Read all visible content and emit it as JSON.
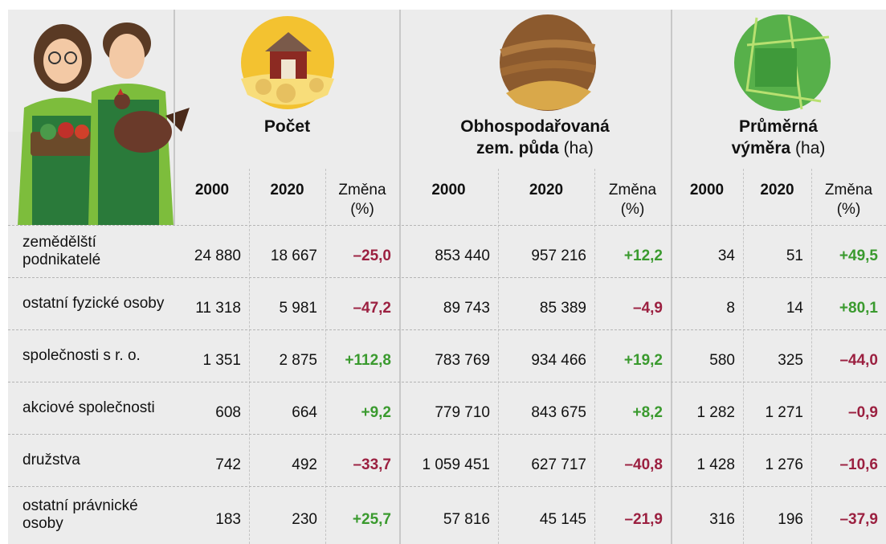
{
  "table": {
    "groups": [
      {
        "title": "Počet",
        "columns": [
          "2000",
          "2020",
          "Změna (%)"
        ]
      },
      {
        "title": "Obhospodařovaná zem. půda",
        "unit": "(ha)",
        "columns": [
          "2000",
          "2020",
          "Změna (%)"
        ]
      },
      {
        "title": "Průměrná výměra",
        "unit": "(ha)",
        "columns": [
          "2000",
          "2020",
          "Změna (%)"
        ]
      }
    ],
    "positive_color": "#3a9a2e",
    "negative_color": "#9b2040",
    "rows": [
      {
        "label": "zemědělští podnikatelé",
        "values": [
          "24 880",
          "18 667",
          "–25,0",
          "853 440",
          "957 216",
          "+12,2",
          "34",
          "51",
          "+49,5"
        ]
      },
      {
        "label": "ostatní fyzické osoby",
        "values": [
          "11 318",
          "5 981",
          "–47,2",
          "89 743",
          "85 389",
          "–4,9",
          "8",
          "14",
          "+80,1"
        ]
      },
      {
        "label": "společnosti s r. o.",
        "values": [
          "1 351",
          "2 875",
          "+112,8",
          "783 769",
          "934 466",
          "+19,2",
          "580",
          "325",
          "–44,0"
        ]
      },
      {
        "label": "akciové společnosti",
        "values": [
          "608",
          "664",
          "+9,2",
          "779 710",
          "843 675",
          "+8,2",
          "1 282",
          "1 271",
          "–0,9"
        ]
      },
      {
        "label": "družstva",
        "values": [
          "742",
          "492",
          "–33,7",
          "1 059 451",
          "627 717",
          "–40,8",
          "1 428",
          "1 276",
          "–10,6"
        ]
      },
      {
        "label": "ostatní právnické osoby",
        "values": [
          "183",
          "230",
          "+25,7",
          "57 816",
          "45 145",
          "–21,9",
          "316",
          "196",
          "–37,9"
        ]
      }
    ]
  }
}
